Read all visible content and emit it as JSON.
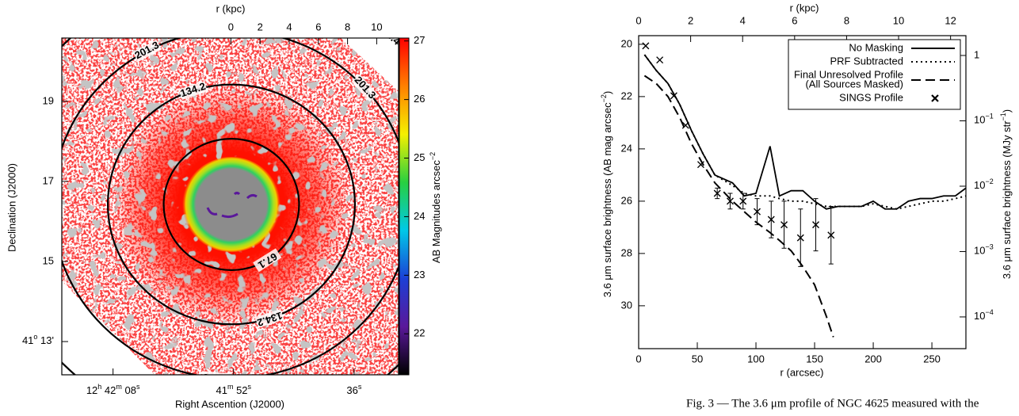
{
  "chart_data": [
    {
      "type": "image",
      "xlabel": "Right Ascention (J2000)",
      "ylabel": "Declination (J2000)",
      "x2label": "r (kpc)",
      "xlim": [
        74.8,
        30.1
      ],
      "xticks": [
        {
          "value": 68,
          "label": [
            "12",
            "h",
            " 42",
            "m",
            " 08",
            "s"
          ]
        },
        {
          "value": 52,
          "label": [
            "41",
            "m",
            " 52",
            "s"
          ]
        },
        {
          "value": 36,
          "label": [
            "36",
            "s"
          ]
        }
      ],
      "ylim": [
        12.17,
        20.58
      ],
      "yticks": [
        19,
        17,
        15,
        {
          "value": 13,
          "label": [
            "41",
            "o",
            " 13'"
          ]
        }
      ],
      "x2lim": [
        -11.6,
        11.5
      ],
      "x2ticks": [
        0,
        2,
        4,
        6,
        8,
        10
      ],
      "contours": [
        67.1,
        134.2,
        201.3,
        268.4
      ],
      "colorbar": {
        "label": [
          "AB Magnitudes arcsec",
          "−2"
        ],
        "lim": [
          21.3,
          27.05
        ],
        "ticks": [
          22,
          23,
          24,
          25,
          26,
          27
        ],
        "colors": [
          "#000000",
          "#5a189a",
          "#1c3fd6",
          "#00c8e8",
          "#28d040",
          "#f5f000",
          "#ff8000",
          "#ff0000"
        ]
      }
    },
    {
      "type": "line",
      "xlabel": "r (arcsec)",
      "ylabel": [
        "3.6 μm surface brightness (AB mag arcsec",
        "−2",
        ")"
      ],
      "x2label": "r (kpc)",
      "y2label": [
        "3.6 μm surface brightness (MJy str",
        "−1",
        ")"
      ],
      "xlim": [
        0,
        279
      ],
      "xticks": [
        0,
        50,
        100,
        150,
        200,
        250
      ],
      "ylim": [
        31.64,
        19.67
      ],
      "yticks": [
        20,
        22,
        24,
        26,
        28,
        30
      ],
      "x2lim": [
        0,
        12.59
      ],
      "x2ticks": [
        0,
        2,
        4,
        6,
        8,
        10,
        12
      ],
      "y2lim": [
        3.27e-05,
        2.01
      ],
      "y2log": true,
      "y2ticks": [
        1,
        {
          "value": 0.1,
          "label": [
            "10",
            "−1"
          ]
        },
        {
          "value": 0.01,
          "label": [
            "10",
            "−2"
          ]
        },
        {
          "value": 0.001,
          "label": [
            "10",
            "−3"
          ]
        },
        {
          "value": 0.0001,
          "label": [
            "10",
            "−4"
          ]
        }
      ],
      "legend": "upper right",
      "series": [
        {
          "name": "No Masking",
          "style": "solid",
          "color": "#000000",
          "x": [
            5,
            15,
            25,
            35,
            45,
            55,
            65,
            80,
            90,
            100,
            112,
            120,
            130,
            140,
            150,
            160,
            170,
            180,
            190,
            200,
            210,
            220,
            230,
            240,
            250,
            260,
            270,
            279
          ],
          "values": [
            20.4,
            21.0,
            21.5,
            22.3,
            23.3,
            24.2,
            25.0,
            25.3,
            25.8,
            25.7,
            23.9,
            25.8,
            25.6,
            25.6,
            26.0,
            26.3,
            26.2,
            26.2,
            26.2,
            26.0,
            26.3,
            26.3,
            26.0,
            25.9,
            25.9,
            25.8,
            25.8,
            25.5
          ]
        },
        {
          "name": "PRF Subtracted",
          "style": "dotted",
          "color": "#000000",
          "x": [
            5,
            15,
            25,
            35,
            45,
            55,
            65,
            80,
            90,
            100,
            112,
            120,
            130,
            140,
            150,
            160,
            170,
            180,
            190,
            200,
            210,
            220,
            230,
            240,
            250,
            260,
            270,
            279
          ],
          "values": [
            20.4,
            21.0,
            21.5,
            22.3,
            23.3,
            24.2,
            25.0,
            25.4,
            25.7,
            25.8,
            25.8,
            25.9,
            26.0,
            26.0,
            26.1,
            26.2,
            26.2,
            26.2,
            26.2,
            26.1,
            26.2,
            26.3,
            26.2,
            26.1,
            26.0,
            26.0,
            25.9,
            25.8
          ]
        },
        {
          "name": [
            "Final Unresolved Profile",
            "(All Sources Masked)"
          ],
          "style": "dashed",
          "color": "#000000",
          "x": [
            5,
            15,
            25,
            35,
            45,
            55,
            65,
            80,
            90,
            100,
            112,
            120,
            130,
            140,
            150,
            160,
            166
          ],
          "values": [
            21.2,
            21.5,
            22.0,
            22.8,
            23.8,
            24.6,
            25.3,
            26.0,
            26.4,
            26.8,
            27.2,
            27.5,
            27.9,
            28.5,
            29.2,
            30.4,
            31.2
          ]
        },
        {
          "name": "SINGS Profile",
          "style": "cross",
          "color": "#000000",
          "x": [
            6,
            18,
            30,
            40,
            53,
            67,
            78,
            89,
            101,
            113,
            124,
            138,
            151,
            164
          ],
          "values": [
            20.06,
            20.6,
            21.97,
            23.1,
            24.6,
            25.7,
            26.0,
            26.0,
            26.4,
            26.7,
            26.9,
            27.4,
            26.9,
            27.3
          ],
          "errors": [
            null,
            null,
            null,
            null,
            null,
            0.2,
            0.3,
            0.3,
            0.5,
            0.7,
            0.9,
            1.1,
            1.0,
            1.1
          ]
        }
      ]
    }
  ],
  "caption": "Fig. 3 — The 3.6 μm profile of NGC 4625 measured with the"
}
